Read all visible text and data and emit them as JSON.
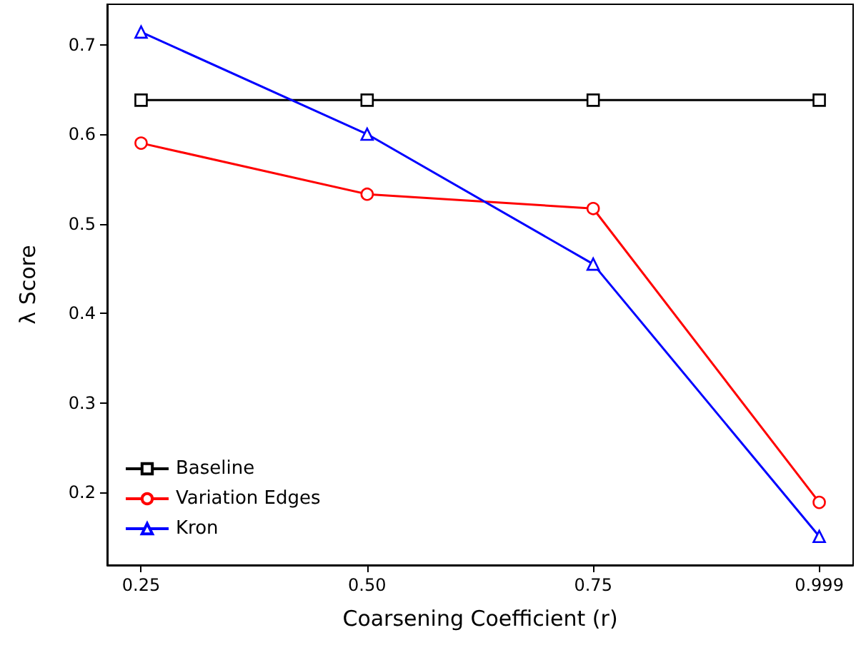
{
  "chart_data": {
    "type": "line",
    "xlabel": "Coarsening Coefficient (r)",
    "ylabel": "λ Score",
    "categories": [
      "0.25",
      "0.50",
      "0.75",
      "0.999"
    ],
    "series": [
      {
        "name": "Baseline",
        "color": "#000000",
        "marker": "square",
        "values": [
          0.638,
          0.638,
          0.638,
          0.638
        ]
      },
      {
        "name": "Variation Edges",
        "color": "#ff0000",
        "marker": "circle",
        "values": [
          0.59,
          0.533,
          0.517,
          0.189
        ]
      },
      {
        "name": "Kron",
        "color": "#0000ff",
        "marker": "triangle",
        "values": [
          0.714,
          0.6,
          0.455,
          0.151
        ]
      }
    ],
    "ylim": [
      0.119,
      0.745
    ],
    "yticks": [
      0.2,
      0.3,
      0.4,
      0.5,
      0.6,
      0.7
    ],
    "grid": false,
    "legend": "bottom left"
  }
}
